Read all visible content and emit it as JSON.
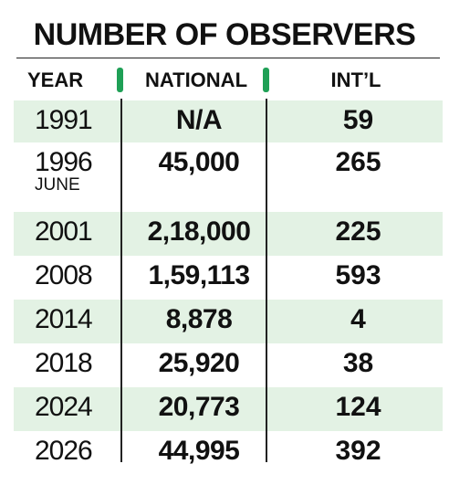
{
  "title": "NUMBER OF OBSERVERS",
  "headers": {
    "year": "YEAR",
    "national": "NATIONAL",
    "international": "INT’L"
  },
  "colors": {
    "accent": "#1fa056",
    "shade": "#e3f2e4",
    "text": "#111111"
  },
  "chart_data": {
    "type": "table",
    "title": "NUMBER OF OBSERVERS",
    "columns": [
      "YEAR",
      "NATIONAL",
      "INT’L"
    ],
    "rows": [
      {
        "year": "1991",
        "sub": "",
        "national": "N/A",
        "international": "59"
      },
      {
        "year": "1996",
        "sub": "JUNE",
        "national": "45,000",
        "international": "265"
      },
      {
        "year": "2001",
        "sub": "",
        "national": "2,18,000",
        "international": "225"
      },
      {
        "year": "2008",
        "sub": "",
        "national": "1,59,113",
        "international": "593"
      },
      {
        "year": "2014",
        "sub": "",
        "national": "8,878",
        "international": "4"
      },
      {
        "year": "2018",
        "sub": "",
        "national": "25,920",
        "international": "38"
      },
      {
        "year": "2024",
        "sub": "",
        "national": "20,773",
        "international": "124"
      },
      {
        "year": "2026",
        "sub": "",
        "national": "44,995",
        "international": "392"
      }
    ]
  }
}
